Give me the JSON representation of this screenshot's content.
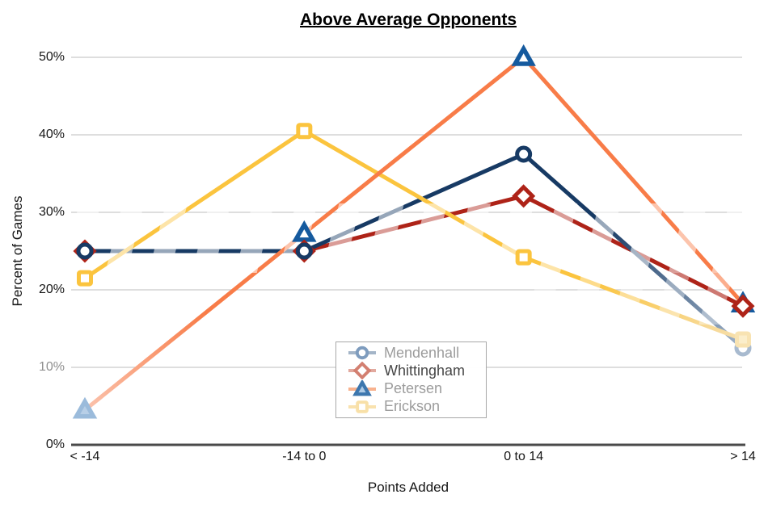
{
  "title": "Above Average Opponents",
  "chart_data": {
    "type": "line",
    "title": "Above Average Opponents",
    "xlabel": "Points Added",
    "ylabel": "Percent of Games",
    "categories": [
      "< -14",
      "-14 to 0",
      "0 to 14",
      "> 14"
    ],
    "yticks": [
      "0%",
      "10%",
      "20%",
      "30%",
      "40%",
      "50%"
    ],
    "ylim": [
      0,
      50
    ],
    "grid": true,
    "legend": {
      "position": "inside-bottom-center",
      "entries": [
        "Mendenhall",
        "Whittingham",
        "Petersen",
        "Erickson"
      ]
    },
    "series": [
      {
        "name": "Mendenhall",
        "marker": "circle",
        "line_color": "#173A64",
        "marker_color": "#173A64",
        "marker_fill": "#FFFFFF",
        "values": [
          25,
          25,
          37.5,
          12.5
        ],
        "point_overrides": {
          "3": {
            "marker_color": "#A8BACF"
          }
        },
        "segment_fades": {
          "2": {
            "from": "#173A64",
            "to": "#9FB2C8",
            "start": 0.35,
            "end": 1
          }
        },
        "legend_line_color": "#A4B5C8",
        "legend_marker_color": "#7E9CBE",
        "legend_marker_fill": "#FFFFFF",
        "legend_label_color": "#9C9C9C"
      },
      {
        "name": "Whittingham",
        "marker": "diamond",
        "line_color": "#AE2318",
        "marker_color": "#AE2318",
        "marker_fill": "#FFFFFF",
        "values": [
          25,
          25,
          32.1,
          17.9
        ],
        "point_overrides": {},
        "segment_fades": {},
        "legend_line_color": "#E2A99E",
        "legend_marker_color": "#D37F70",
        "legend_marker_fill": "#FFFFFF",
        "legend_label_color": "#474747"
      },
      {
        "name": "Petersen",
        "marker": "triangle",
        "line_color": "#F87C48",
        "marker_color": "#155A9E",
        "marker_fill": "#FFFFFF",
        "values": [
          4.5,
          27.3,
          50,
          18.2
        ],
        "point_overrides": {
          "0": {
            "marker_color": "#9BBBDB",
            "marker_fill": "#B8CFE7"
          }
        },
        "segment_fades": {
          "0": {
            "from": "#FBC3AD",
            "to": "#F87C48",
            "start": 0,
            "end": 0.55
          }
        },
        "legend_line_color": "#F8B28E",
        "legend_marker_color": "#3D77AE",
        "legend_marker_fill": "#AECBE6",
        "legend_label_color": "#9C9C9C"
      },
      {
        "name": "Erickson",
        "marker": "square",
        "line_color": "#FBC43E",
        "marker_color": "#FBC43E",
        "marker_fill": "#FFFFFF",
        "values": [
          21.5,
          40.5,
          24.2,
          13.6
        ],
        "point_overrides": {
          "3": {
            "marker_color": "#F8E3B2",
            "marker_fill": "#FBEECB"
          }
        },
        "segment_fades": {
          "2": {
            "from": "#FBC43E",
            "to": "#F6DFAE",
            "start": 0.3,
            "end": 1
          }
        },
        "legend_line_color": "#F9E2AE",
        "legend_marker_color": "#F8E0A8",
        "legend_marker_fill": "#FFFFFF",
        "legend_label_color": "#9C9C9C"
      }
    ]
  }
}
